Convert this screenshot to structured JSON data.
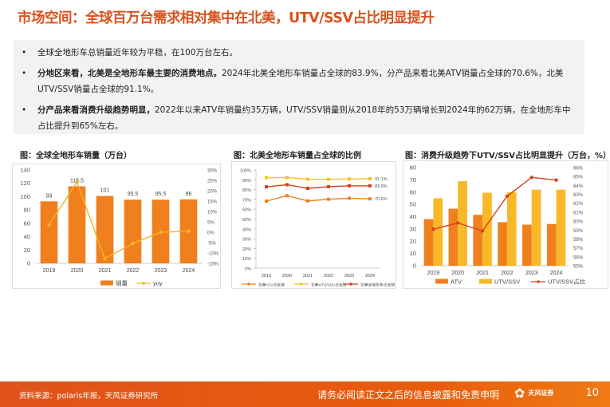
{
  "title": "市场空间：全球百万台需求相对集中在北美，UTV/SSV占比明显提升",
  "bullets": [
    {
      "bold": "",
      "text": "全球全地形车总销量近年较为平稳，在100万台左右。"
    },
    {
      "bold": "分地区来看，北美是全地形车最主要的消费地点。",
      "text": "2024年北美全地形车销量占全球的83.9%，分产品来看北美ATV销量占全球的70.6%，北美UTV/SSV销量占全球的91.1%。"
    },
    {
      "bold": "分产品来看消费升级趋势明显，",
      "text": "2022年以来ATV年销量约35万辆，UTV/SSV销量则从2018年的53万辆增长到2024年的62万辆，在全地形车中占比提升到65%左右。"
    }
  ],
  "bullet_symbol": "•",
  "chart_titles": [
    "图：全球全地形车销量（万台）",
    "图：北美全地形车销量占全球的比例",
    "图：消费升级趋势下UTV/SSV占比明显提升（万台，%）"
  ],
  "chart_data": [
    {
      "type": "bar",
      "categories": [
        "2019",
        "2020",
        "2021",
        "2022",
        "2023",
        "2024"
      ],
      "series": [
        {
          "name": "销量",
          "type": "bar",
          "axis": "left",
          "values": [
            93,
            115.5,
            101,
            95.5,
            95.5,
            96
          ],
          "color": "#f0801e",
          "labels": [
            "93",
            "115.5",
            "101",
            "95.5",
            "95.5",
            "96"
          ]
        },
        {
          "name": "yoy",
          "type": "line",
          "axis": "right",
          "values": [
            3.5,
            24.2,
            -12.8,
            -5.4,
            0,
            0.5
          ],
          "color": "#f5b324"
        }
      ],
      "ylim": [
        0,
        140
      ],
      "yticks": [
        "0",
        "20",
        "40",
        "60",
        "80",
        "100",
        "120",
        "140"
      ],
      "y2lim": [
        -15,
        30
      ],
      "y2ticks": [
        "-15%",
        "-10%",
        "-5%",
        "0%",
        "5%",
        "10%",
        "15%",
        "20%",
        "25%",
        "30%"
      ],
      "legend": "bottom"
    },
    {
      "type": "line",
      "categories": [
        "2019",
        "2020",
        "2021",
        "2022",
        "2023",
        "2024"
      ],
      "series": [
        {
          "name": "北美ATV占全球",
          "values": [
            68.3,
            73.8,
            68.5,
            70.2,
            71.2,
            70.6
          ],
          "color": "#f0801e",
          "end_label": "70.6%"
        },
        {
          "name": "北美UTV/SSV占全球",
          "values": [
            92.2,
            92.3,
            90.6,
            90.5,
            90.8,
            91.1
          ],
          "color": "#f5c026",
          "end_label": "91.1%"
        },
        {
          "name": "北美全地形车占全球",
          "values": [
            82.8,
            85.0,
            81.3,
            83.0,
            83.9,
            83.9
          ],
          "color": "#d2401e",
          "end_label": "83.9%"
        }
      ],
      "ylim": [
        0,
        100
      ],
      "yticks": [
        "0%",
        "10%",
        "20%",
        "30%",
        "40%",
        "50%",
        "60%",
        "70%",
        "80%",
        "90%",
        "100%"
      ],
      "legend": "bottom"
    },
    {
      "type": "bar",
      "categories": [
        "2019",
        "2020",
        "2021",
        "2022",
        "2023",
        "2024"
      ],
      "series": [
        {
          "name": "ATV",
          "type": "bar",
          "axis": "left",
          "values": [
            38,
            46.5,
            41.5,
            35.5,
            33.5,
            34
          ],
          "color": "#f0801e"
        },
        {
          "name": "UTV/SSV",
          "type": "bar",
          "axis": "left",
          "values": [
            55,
            69,
            59.5,
            60,
            62,
            62
          ],
          "color": "#f8b928"
        },
        {
          "name": "UTV/SSV占比",
          "type": "line",
          "axis": "right",
          "values": [
            59.1,
            59.8,
            58.9,
            62.8,
            64.9,
            64.6
          ],
          "color": "#d9401e"
        }
      ],
      "ylim": [
        0,
        80
      ],
      "yticks": [
        "0",
        "10",
        "20",
        "30",
        "40",
        "50",
        "60",
        "70",
        "80"
      ],
      "y2lim": [
        55,
        66
      ],
      "y2ticks": [
        "55%",
        "56%",
        "57%",
        "58%",
        "59%",
        "60%",
        "61%",
        "62%",
        "63%",
        "64%",
        "65%",
        "66%"
      ],
      "legend": "bottom"
    }
  ],
  "footer": {
    "source": "资料来源：polaris年报，天风证券研究所",
    "disclaimer": "请务必阅读正文之后的信息披露和免责申明",
    "logo": "天风证券",
    "page": "10"
  }
}
